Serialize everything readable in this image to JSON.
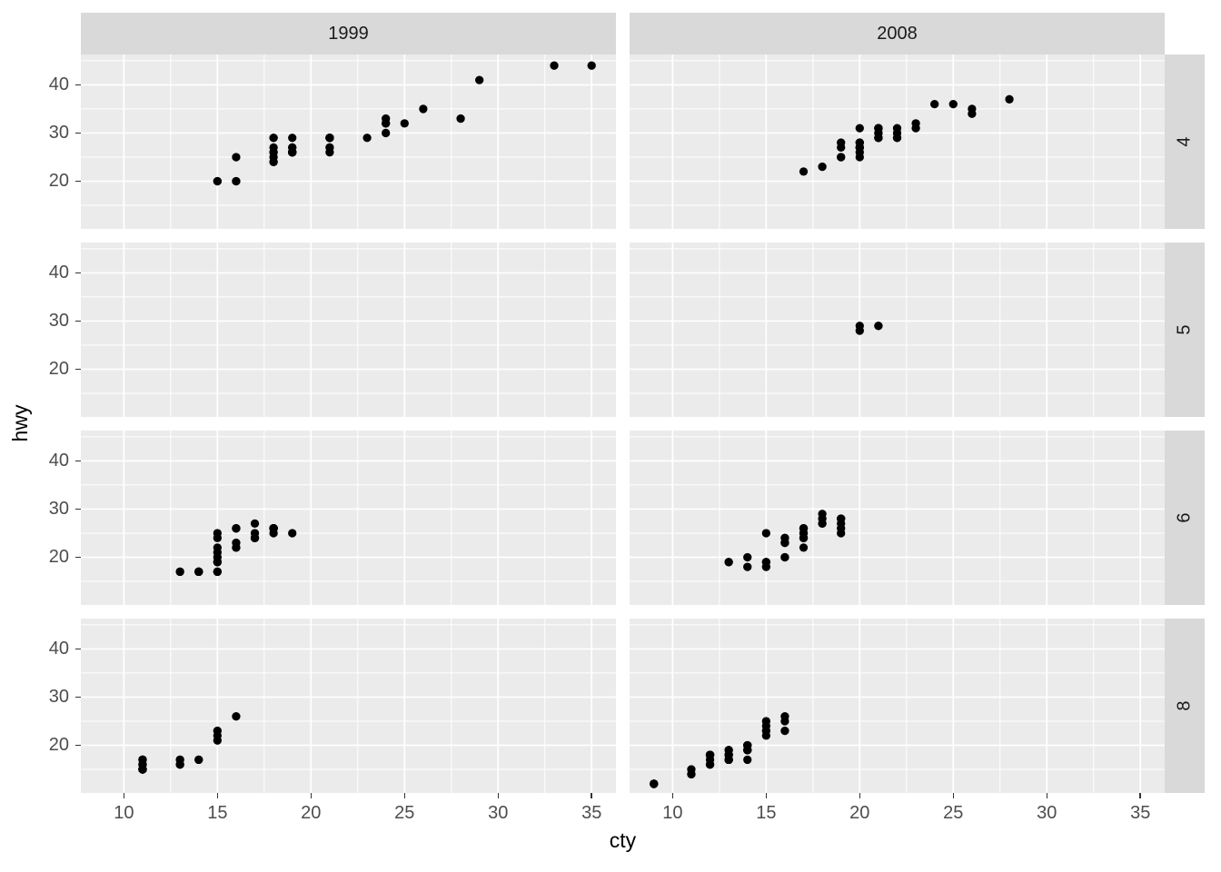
{
  "chart_data": {
    "type": "scatter",
    "title": "",
    "xlabel": "cty",
    "ylabel": "hwy",
    "facet_cols": [
      "1999",
      "2008"
    ],
    "facet_rows": [
      "4",
      "5",
      "6",
      "8"
    ],
    "x_domain": [
      7.7,
      36.3
    ],
    "y_domain": [
      10.1,
      46.3
    ],
    "x_major_ticks": [
      10,
      15,
      20,
      25,
      30,
      35
    ],
    "x_minor_ticks": [
      12.5,
      17.5,
      22.5,
      27.5,
      32.5
    ],
    "y_major_ticks": [
      20,
      30,
      40
    ],
    "y_minor_ticks": [
      15,
      25,
      35,
      45
    ],
    "grid": true,
    "legend": "none",
    "point_radius": 4.65,
    "colors": {
      "panel_bg": "#EBEBEB",
      "strip_bg": "#D9D9D9",
      "grid_line": "#FFFFFF",
      "point": "#000000",
      "tick_label": "#4D4D4D",
      "strip_text": "#1A1A1A",
      "axis_title": "#000000",
      "tick_mark": "#333333"
    },
    "panels": [
      {
        "facet_col": "1999",
        "facet_row": "4",
        "points": [
          [
            18,
            29
          ],
          [
            21,
            29
          ],
          [
            18,
            26
          ],
          [
            16,
            25
          ],
          [
            19,
            27
          ],
          [
            18,
            24
          ],
          [
            28,
            33
          ],
          [
            24,
            32
          ],
          [
            25,
            32
          ],
          [
            23,
            29
          ],
          [
            24,
            32
          ],
          [
            18,
            26
          ],
          [
            18,
            27
          ],
          [
            19,
            26
          ],
          [
            19,
            29
          ],
          [
            21,
            29
          ],
          [
            19,
            27
          ],
          [
            18,
            25
          ],
          [
            18,
            24
          ],
          [
            21,
            26
          ],
          [
            19,
            26
          ],
          [
            19,
            26
          ],
          [
            19,
            26
          ],
          [
            15,
            20
          ],
          [
            16,
            20
          ],
          [
            21,
            29
          ],
          [
            21,
            27
          ],
          [
            21,
            27
          ],
          [
            21,
            29
          ],
          [
            24,
            30
          ],
          [
            24,
            33
          ],
          [
            26,
            35
          ],
          [
            15,
            20
          ],
          [
            16,
            20
          ],
          [
            21,
            29
          ],
          [
            19,
            26
          ],
          [
            33,
            44
          ],
          [
            21,
            29
          ],
          [
            19,
            26
          ],
          [
            35,
            44
          ],
          [
            29,
            41
          ],
          [
            21,
            29
          ],
          [
            19,
            26
          ],
          [
            21,
            29
          ],
          [
            18,
            29
          ]
        ]
      },
      {
        "facet_col": "2008",
        "facet_row": "4",
        "points": [
          [
            20,
            31
          ],
          [
            21,
            30
          ],
          [
            20,
            28
          ],
          [
            19,
            27
          ],
          [
            22,
            30
          ],
          [
            26,
            34
          ],
          [
            25,
            36
          ],
          [
            24,
            36
          ],
          [
            21,
            29
          ],
          [
            21,
            30
          ],
          [
            21,
            31
          ],
          [
            20,
            28
          ],
          [
            20,
            27
          ],
          [
            23,
            31
          ],
          [
            23,
            32
          ],
          [
            20,
            27
          ],
          [
            19,
            25
          ],
          [
            20,
            26
          ],
          [
            18,
            23
          ],
          [
            20,
            25
          ],
          [
            20,
            27
          ],
          [
            19,
            25
          ],
          [
            20,
            27
          ],
          [
            21,
            31
          ],
          [
            21,
            31
          ],
          [
            21,
            31
          ],
          [
            22,
            31
          ],
          [
            28,
            37
          ],
          [
            26,
            35
          ],
          [
            17,
            22
          ],
          [
            21,
            29
          ],
          [
            22,
            29
          ],
          [
            22,
            29
          ],
          [
            21,
            29
          ],
          [
            19,
            28
          ],
          [
            21,
            29
          ]
        ]
      },
      {
        "facet_col": "1999",
        "facet_row": "5",
        "points": []
      },
      {
        "facet_col": "2008",
        "facet_row": "5",
        "points": [
          [
            21,
            29
          ],
          [
            21,
            29
          ],
          [
            20,
            28
          ],
          [
            20,
            29
          ]
        ]
      },
      {
        "facet_col": "1999",
        "facet_row": "6",
        "points": [
          [
            16,
            26
          ],
          [
            18,
            26
          ],
          [
            15,
            25
          ],
          [
            17,
            25
          ],
          [
            15,
            24
          ],
          [
            18,
            26
          ],
          [
            17,
            24
          ],
          [
            16,
            22
          ],
          [
            16,
            22
          ],
          [
            15,
            22
          ],
          [
            15,
            21
          ],
          [
            13,
            17
          ],
          [
            14,
            17
          ],
          [
            13,
            17
          ],
          [
            14,
            17
          ],
          [
            15,
            19
          ],
          [
            14,
            17
          ],
          [
            14,
            17
          ],
          [
            14,
            17
          ],
          [
            18,
            26
          ],
          [
            18,
            25
          ],
          [
            18,
            26
          ],
          [
            18,
            26
          ],
          [
            15,
            20
          ],
          [
            14,
            17
          ],
          [
            18,
            26
          ],
          [
            19,
            25
          ],
          [
            14,
            17
          ],
          [
            15,
            17
          ],
          [
            18,
            26
          ],
          [
            16,
            26
          ],
          [
            17,
            27
          ],
          [
            15,
            19
          ],
          [
            15,
            17
          ],
          [
            18,
            26
          ],
          [
            18,
            26
          ],
          [
            18,
            26
          ],
          [
            18,
            26
          ],
          [
            15,
            17
          ],
          [
            15,
            19
          ],
          [
            17,
            24
          ],
          [
            16,
            23
          ],
          [
            17,
            24
          ],
          [
            16,
            26
          ],
          [
            18,
            26
          ]
        ]
      },
      {
        "facet_col": "2008",
        "facet_row": "6",
        "points": [
          [
            18,
            27
          ],
          [
            17,
            25
          ],
          [
            15,
            25
          ],
          [
            17,
            25
          ],
          [
            18,
            29
          ],
          [
            17,
            26
          ],
          [
            17,
            24
          ],
          [
            16,
            23
          ],
          [
            16,
            23
          ],
          [
            15,
            19
          ],
          [
            14,
            18
          ],
          [
            13,
            19
          ],
          [
            17,
            26
          ],
          [
            16,
            24
          ],
          [
            19,
            28
          ],
          [
            17,
            24
          ],
          [
            16,
            24
          ],
          [
            17,
            24
          ],
          [
            17,
            22
          ],
          [
            15,
            19
          ],
          [
            13,
            19
          ],
          [
            19,
            27
          ],
          [
            19,
            26
          ],
          [
            19,
            25
          ],
          [
            14,
            20
          ],
          [
            18,
            28
          ],
          [
            16,
            20
          ],
          [
            19,
            28
          ],
          [
            18,
            27
          ],
          [
            15,
            18
          ],
          [
            16,
            20
          ],
          [
            17,
            26
          ]
        ]
      },
      {
        "facet_col": "1999",
        "facet_row": "8",
        "points": [
          [
            13,
            17
          ],
          [
            16,
            26
          ],
          [
            15,
            23
          ],
          [
            11,
            15
          ],
          [
            14,
            17
          ],
          [
            11,
            17
          ],
          [
            11,
            15
          ],
          [
            11,
            16
          ],
          [
            11,
            15
          ],
          [
            11,
            15
          ],
          [
            11,
            16
          ],
          [
            11,
            15
          ],
          [
            11,
            17
          ],
          [
            11,
            17
          ],
          [
            13,
            16
          ],
          [
            13,
            16
          ],
          [
            11,
            15
          ],
          [
            15,
            21
          ],
          [
            15,
            22
          ],
          [
            14,
            17
          ],
          [
            11,
            15
          ],
          [
            11,
            15
          ],
          [
            11,
            17
          ],
          [
            11,
            16
          ],
          [
            13,
            17
          ],
          [
            11,
            15
          ]
        ]
      },
      {
        "facet_col": "2008",
        "facet_row": "8",
        "points": [
          [
            16,
            23
          ],
          [
            14,
            20
          ],
          [
            11,
            15
          ],
          [
            14,
            20
          ],
          [
            12,
            17
          ],
          [
            16,
            26
          ],
          [
            15,
            25
          ],
          [
            15,
            24
          ],
          [
            14,
            19
          ],
          [
            11,
            14
          ],
          [
            14,
            19
          ],
          [
            14,
            19
          ],
          [
            9,
            12
          ],
          [
            13,
            17
          ],
          [
            9,
            12
          ],
          [
            13,
            17
          ],
          [
            13,
            18
          ],
          [
            12,
            16
          ],
          [
            9,
            12
          ],
          [
            13,
            17
          ],
          [
            13,
            17
          ],
          [
            12,
            16
          ],
          [
            9,
            12
          ],
          [
            13,
            17
          ],
          [
            12,
            18
          ],
          [
            13,
            19
          ],
          [
            13,
            17
          ],
          [
            13,
            17
          ],
          [
            15,
            23
          ],
          [
            15,
            22
          ],
          [
            14,
            20
          ],
          [
            9,
            12
          ],
          [
            14,
            19
          ],
          [
            13,
            18
          ],
          [
            11,
            14
          ],
          [
            12,
            18
          ],
          [
            12,
            18
          ],
          [
            12,
            18
          ],
          [
            13,
            19
          ],
          [
            12,
            18
          ],
          [
            16,
            25
          ],
          [
            13,
            18
          ],
          [
            14,
            17
          ]
        ]
      }
    ]
  }
}
